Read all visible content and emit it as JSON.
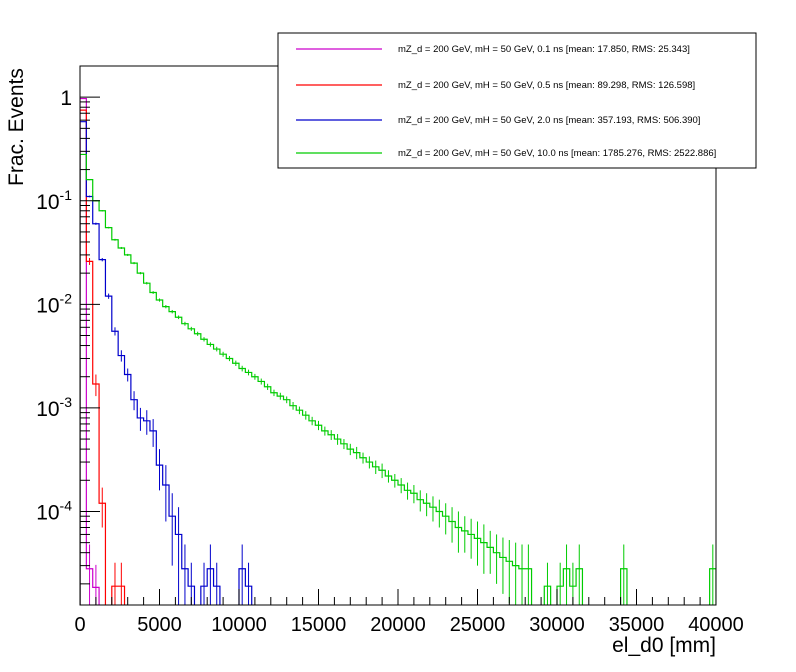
{
  "chart_data": {
    "type": "line",
    "style": "step-histogram",
    "xlabel": "el_d0 [mm]",
    "ylabel": "Frac. Events",
    "xlim": [
      0,
      40000
    ],
    "ylim": [
      1.25e-05,
      2.0
    ],
    "yscale": "log",
    "grid": false,
    "legend_position": "top-right",
    "x_ticks": [
      0,
      5000,
      10000,
      15000,
      20000,
      25000,
      30000,
      35000,
      40000
    ],
    "x_tick_labels": [
      "0",
      "5000",
      "10000",
      "15000",
      "20000",
      "25000",
      "30000",
      "35000",
      "40000"
    ],
    "y_ticks": [
      0.0001,
      0.001,
      0.01,
      0.1,
      1
    ],
    "y_tick_labels": [
      {
        "base": "10",
        "exp": "-4"
      },
      {
        "base": "10",
        "exp": "-3"
      },
      {
        "base": "10",
        "exp": "-2"
      },
      {
        "base": "10",
        "exp": "-1"
      },
      {
        "base": "1",
        "exp": ""
      }
    ],
    "bin_width": 400,
    "series": [
      {
        "name": "mZ_d = 200 GeV, mH = 50 GeV, 0.1 ns [mean: 17.850, RMS: 25.343]",
        "color": "#cc00cc",
        "x": [
          0,
          400,
          800
        ],
        "values": [
          0.97,
          2.8e-05,
          1.85e-05
        ],
        "errors": [
          0,
          2e-05,
          1.2e-05
        ]
      },
      {
        "name": "mZ_d = 200 GeV, mH = 50 GeV, 0.5 ns [mean: 89.298, RMS: 126.598]",
        "color": "#ff0000",
        "x": [
          0,
          400,
          800,
          1200,
          1600,
          2000,
          2400,
          2800
        ],
        "values": [
          0.75,
          0.026,
          0.0017,
          0.00012,
          1e-05,
          1.9e-05,
          1.9e-05,
          1e-05
        ],
        "errors": [
          0.003,
          0.002,
          0.0004,
          5e-05,
          0,
          1.3e-05,
          1.3e-05,
          0
        ]
      },
      {
        "name": "mZ_d = 200 GeV, mH = 50 GeV, 2.0 ns [mean: 357.193, RMS: 506.390]",
        "color": "#0000cc",
        "x": [
          0,
          400,
          800,
          1200,
          1600,
          2000,
          2400,
          2800,
          3200,
          3600,
          4000,
          4400,
          4800,
          5200,
          5600,
          6000,
          6400,
          6800,
          7200,
          7600,
          8000,
          8400,
          8800,
          9200,
          9600,
          10000,
          10400
        ],
        "values": [
          0.58,
          0.11,
          0.06,
          0.027,
          0.012,
          0.0055,
          0.0032,
          0.0021,
          0.0012,
          0.0008,
          0.00075,
          0.0006,
          0.00028,
          0.00018,
          9e-05,
          6e-05,
          2.8e-05,
          1.9e-05,
          1e-05,
          1.9e-05,
          2.8e-05,
          1.9e-05,
          1e-05,
          1e-05,
          1e-05,
          2.8e-05,
          1.9e-05
        ],
        "errors": [
          0.003,
          0.002,
          0.0015,
          0.001,
          0.0007,
          0.0005,
          0.0004,
          0.0003,
          0.00025,
          0.0002,
          0.0002,
          0.00018,
          0.00012,
          0.0001,
          6e-05,
          5e-05,
          2e-05,
          1.3e-05,
          0,
          1.3e-05,
          2e-05,
          1.3e-05,
          0,
          0,
          0,
          2e-05,
          1.3e-05
        ]
      },
      {
        "name": "mZ_d = 200 GeV, mH = 50 GeV, 10.0 ns [mean: 1785.276, RMS: 2522.886]",
        "color": "#00cc00",
        "x": [
          0,
          400,
          800,
          1200,
          1600,
          2000,
          2400,
          2800,
          3200,
          3600,
          4000,
          4400,
          4800,
          5200,
          5600,
          6000,
          6400,
          6800,
          7200,
          7600,
          8000,
          8400,
          8800,
          9200,
          9600,
          10000,
          10400,
          10800,
          11200,
          11600,
          12000,
          12400,
          12800,
          13200,
          13600,
          14000,
          14400,
          14800,
          15200,
          15600,
          16000,
          16400,
          16800,
          17200,
          17600,
          18000,
          18400,
          18800,
          19200,
          19600,
          20000,
          20400,
          20800,
          21200,
          21600,
          22000,
          22400,
          22800,
          23200,
          23600,
          24000,
          24400,
          24800,
          25200,
          25600,
          26000,
          26400,
          26800,
          27200,
          27600,
          28000,
          28400,
          28800,
          29200,
          29600,
          30000,
          30400,
          30800,
          31200,
          31600,
          32000,
          32400,
          32800,
          33200,
          33600,
          34000,
          34400,
          34800,
          35200,
          35600,
          36000,
          36400,
          36800,
          37200,
          37600,
          38000,
          38400,
          38800,
          39200,
          39600
        ],
        "values": [
          0.28,
          0.16,
          0.1,
          0.08,
          0.055,
          0.042,
          0.035,
          0.03,
          0.025,
          0.02,
          0.016,
          0.013,
          0.011,
          0.0095,
          0.0085,
          0.0075,
          0.0065,
          0.0058,
          0.0052,
          0.0046,
          0.0041,
          0.0037,
          0.0033,
          0.003,
          0.0027,
          0.0024,
          0.0022,
          0.002,
          0.0018,
          0.0016,
          0.0014,
          0.0013,
          0.0012,
          0.00105,
          0.00095,
          0.00085,
          0.00075,
          0.00068,
          0.0006,
          0.00055,
          0.0005,
          0.00045,
          0.0004,
          0.00037,
          0.00033,
          0.0003,
          0.00027,
          0.00025,
          0.00022,
          0.0002,
          0.00018,
          0.00016,
          0.00015,
          0.00013,
          0.00012,
          0.00011,
          0.0001,
          9e-05,
          8e-05,
          7e-05,
          6.5e-05,
          6e-05,
          5.5e-05,
          5e-05,
          4.5e-05,
          4e-05,
          3.6e-05,
          3.3e-05,
          3e-05,
          2.8e-05,
          2.8e-05,
          1e-05,
          1e-05,
          1.9e-05,
          1e-05,
          1.9e-05,
          2.8e-05,
          1.9e-05,
          2.8e-05,
          1e-05,
          1e-05,
          1e-05,
          1e-05,
          1e-05,
          1e-05,
          2.8e-05,
          1e-05,
          1e-05,
          1e-05,
          1e-05,
          1e-05,
          1e-05,
          1e-05,
          1e-05,
          1e-05,
          1e-05,
          1e-05,
          1e-05,
          1e-05,
          2.8e-05
        ],
        "errors": [
          0.003,
          0.002,
          0.0015,
          0.0013,
          0.001,
          0.0009,
          0.0008,
          0.0007,
          0.0006,
          0.0005,
          0.00045,
          0.0004,
          0.00038,
          0.00035,
          0.00032,
          0.0003,
          0.00028,
          0.00026,
          0.00024,
          0.00022,
          0.0002,
          0.00019,
          0.00018,
          0.00017,
          0.00016,
          0.00015,
          0.00014,
          0.00013,
          0.00012,
          0.00011,
          0.0001,
          0.0001,
          9e-05,
          9e-05,
          8e-05,
          8e-05,
          7e-05,
          7e-05,
          6e-05,
          6e-05,
          6e-05,
          5e-05,
          5e-05,
          5e-05,
          4e-05,
          4e-05,
          4e-05,
          4e-05,
          3e-05,
          3e-05,
          3e-05,
          3e-05,
          3e-05,
          3e-05,
          3e-05,
          3e-05,
          3e-05,
          3e-05,
          3e-05,
          3e-05,
          2.5e-05,
          2.5e-05,
          2.5e-05,
          2.5e-05,
          2e-05,
          2e-05,
          2e-05,
          2e-05,
          2e-05,
          2e-05,
          2e-05,
          0,
          0,
          1.3e-05,
          0,
          1.3e-05,
          2e-05,
          1.3e-05,
          2e-05,
          0,
          0,
          0,
          0,
          0,
          0,
          2e-05,
          0,
          0,
          0,
          0,
          0,
          0,
          0,
          0,
          0,
          0,
          0,
          0,
          0,
          2e-05
        ]
      }
    ]
  }
}
